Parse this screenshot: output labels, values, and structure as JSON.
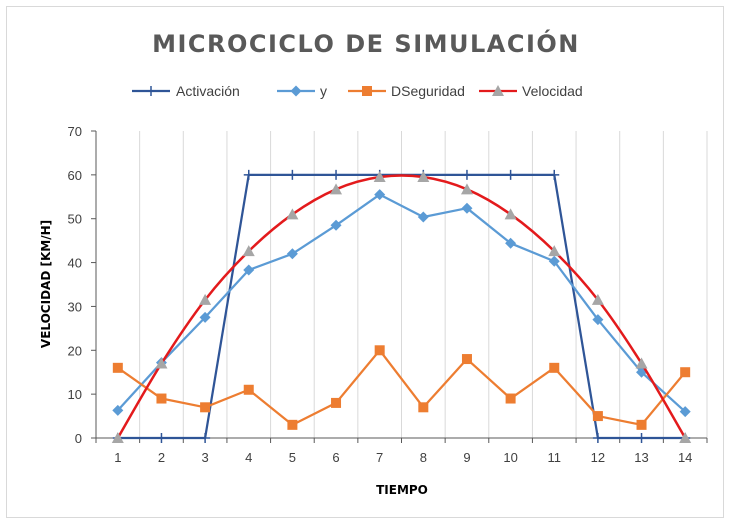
{
  "chart_data": {
    "type": "line",
    "title": "MICROCICLO DE SIMULACIÓN",
    "xlabel": "TIEMPO",
    "ylabel": "VELOCIDAD [KM/H]",
    "categories": [
      "1",
      "2",
      "3",
      "4",
      "5",
      "6",
      "7",
      "8",
      "9",
      "10",
      "11",
      "12",
      "13",
      "14"
    ],
    "ylim": [
      0,
      70
    ],
    "yticks": [
      "0",
      "10",
      "20",
      "30",
      "40",
      "50",
      "60",
      "70"
    ],
    "grid": "vertical",
    "legend_position": "top",
    "series": [
      {
        "name": "Activación",
        "color": "#2f5597",
        "marker": "plus",
        "smooth": false,
        "values": [
          0,
          0,
          0,
          60,
          60,
          60,
          60,
          60,
          60,
          60,
          60,
          0,
          0,
          0
        ]
      },
      {
        "name": "y",
        "color": "#5b9bd5",
        "marker": "diamond",
        "smooth": false,
        "values": [
          6.3,
          17.2,
          27.5,
          38.3,
          42,
          48.5,
          55.5,
          50.4,
          52.4,
          44.4,
          40.3,
          27,
          15,
          6
        ]
      },
      {
        "name": "DSeguridad",
        "color": "#ed7d31",
        "marker": "square",
        "smooth": false,
        "values": [
          16,
          9,
          7,
          11,
          3,
          8,
          20,
          7,
          18,
          9,
          16,
          5,
          3,
          15
        ]
      },
      {
        "name": "Velocidad",
        "color": "#e31a1c",
        "marker": "triangle",
        "smooth": true,
        "values": [
          0,
          17,
          31.5,
          42.6,
          51,
          56.7,
          59.5,
          59.5,
          56.7,
          51,
          42.6,
          31.5,
          17,
          0
        ]
      }
    ]
  }
}
